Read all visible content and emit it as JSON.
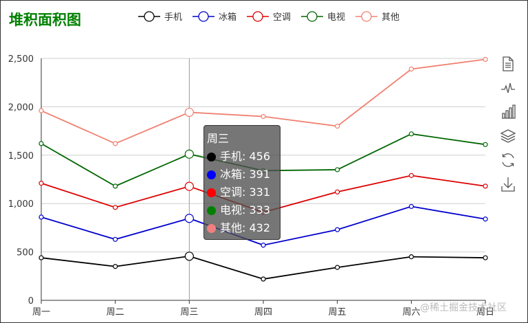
{
  "chart_data": {
    "type": "line",
    "title": "堆积面积图",
    "title_color": "#008000",
    "categories": [
      "周一",
      "周二",
      "周三",
      "周四",
      "周五",
      "周六",
      "周日"
    ],
    "stacked": true,
    "ylim": [
      0,
      2500
    ],
    "yticks": [
      "0",
      "500",
      "1,000",
      "1,500",
      "2,000",
      "2,500"
    ],
    "ytick_values": [
      0,
      500,
      1000,
      1500,
      2000,
      2500
    ],
    "grid": true,
    "legend_position": "top",
    "series": [
      {
        "name": "手机",
        "color": "#000000",
        "values": [
          440,
          350,
          456,
          220,
          340,
          450,
          440
        ]
      },
      {
        "name": "冰箱",
        "color": "#0000cc",
        "values": [
          420,
          280,
          391,
          350,
          390,
          520,
          400
        ]
      },
      {
        "name": "空调",
        "color": "#dd0000",
        "values": [
          350,
          330,
          331,
          340,
          390,
          320,
          340
        ]
      },
      {
        "name": "电视",
        "color": "#006600",
        "values": [
          410,
          220,
          333,
          430,
          230,
          430,
          430
        ]
      },
      {
        "name": "其他",
        "color": "#f08070",
        "values": [
          340,
          440,
          432,
          560,
          450,
          670,
          880
        ]
      }
    ],
    "tooltip": {
      "category": "周三",
      "rows": [
        {
          "label": "手机: 456",
          "color": "#000000"
        },
        {
          "label": "冰箱: 391",
          "color": "#0000ff"
        },
        {
          "label": "空调: 331",
          "color": "#ff0000"
        },
        {
          "label": "电视: 333",
          "color": "#008000"
        },
        {
          "label": "其他: 432",
          "color": "#f08080"
        }
      ]
    }
  },
  "toolbox": [
    "data-view-icon",
    "line-chart-icon",
    "bar-chart-icon",
    "stack-icon",
    "restore-icon",
    "save-image-icon"
  ],
  "watermark": "@稀土掘金技术社区"
}
